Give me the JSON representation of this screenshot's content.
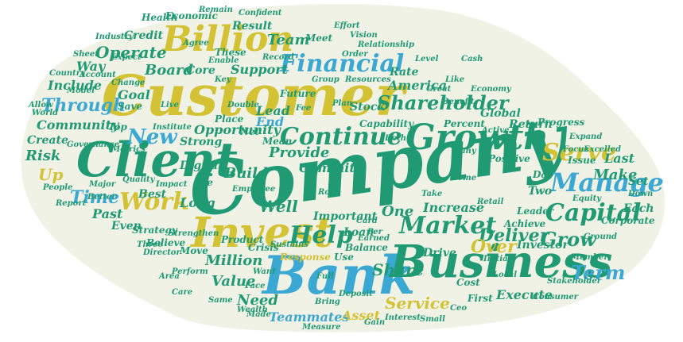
{
  "palette": {
    "background": "#ffffff",
    "cloud_fill": "#f1f2e6",
    "teal": "#1f9a73",
    "yellow": "#d3c234",
    "blue": "#3ba7d3",
    "light": "#b9c48f"
  },
  "words": {
    "company": "Company",
    "customer": "Customer",
    "bank": "Bank",
    "business": "Business",
    "client": "Client",
    "growth": "Growth",
    "billion": "Billion",
    "invest": "Invest",
    "financial": "Financial",
    "continue": "Continue",
    "manage": "Manage",
    "capital": "Capital",
    "serve": "Serve",
    "shareholder": "Shareholder",
    "market": "Market",
    "help": "Help",
    "work": "Work",
    "new": "New",
    "time": "Time",
    "deliver": "Deliver",
    "grow": "Grow",
    "over": "Over",
    "share": "Share",
    "service": "Service",
    "execute": "Execute",
    "term": "Term",
    "value": "Value",
    "million": "Million",
    "need": "Need",
    "teammates": "Teammates",
    "asset": "Asset",
    "operate": "Operate",
    "team": "Team",
    "board": "Board",
    "core": "Core",
    "support": "Support",
    "goal": "Goal",
    "through": "Through",
    "community": "Community",
    "include": "Include",
    "risk": "Risk",
    "up": "Up",
    "create": "Create",
    "way": "Way",
    "credit": "Credit",
    "result": "Result",
    "lead": "Lead",
    "end": "End",
    "america": "America",
    "rate": "Rate",
    "stock": "Stock",
    "capability": "Capability",
    "percent": "Percent",
    "global": "Global",
    "return": "Return",
    "progress": "Progress",
    "make": "Make",
    "last": "Last",
    "set": "Set",
    "each": "Each",
    "issue": "Issue",
    "day": "Day",
    "corporate": "Corporate",
    "investor": "Investor",
    "leader": "Leader",
    "two": "Two",
    "increase": "Increase",
    "one": "One",
    "important": "Important",
    "loan": "Loan",
    "well": "Well",
    "provide": "Provide",
    "commit": "Commit",
    "opportunity": "Opportunity",
    "place": "Place",
    "strong": "Strong",
    "build": "Build",
    "long": "Long",
    "digital": "Digital",
    "best": "Best",
    "past": "Past",
    "even": "Even",
    "strategy": "Strategy",
    "response": "Response",
    "balance": "Balance",
    "drive": "Drive",
    "first": "First",
    "positive": "Positive",
    "focus": "Focus",
    "excelled": "Excelled",
    "meet": "Meet",
    "economic": "Economic",
    "health": "Health",
    "save": "Save",
    "top": "Top",
    "net": "Net",
    "mean": "Mean",
    "future": "Future",
    "see": "See",
    "product": "Product",
    "crisis": "Crisis",
    "sustains": "Sustains",
    "use": "Use",
    "earned": "Earned",
    "achieve": "Achieve",
    "move": "Move",
    "believe": "Believe",
    "ceo": "Ceo",
    "cost": "Cost",
    "consumer": "Consumer",
    "deposit": "Deposit",
    "made": "Made",
    "wealth": "Wealth",
    "these": "These",
    "relationship": "Relationship",
    "record": "Record",
    "live": "Live",
    "institute": "Institute",
    "employee": "Employee",
    "card": "Card",
    "per": "Per",
    "people": "People",
    "world": "World",
    "country": "Country",
    "allow": "Allow",
    "sheet": "Sheet",
    "industry": "Industry",
    "report": "Report",
    "quality": "Quality",
    "vision": "Vision",
    "effort": "Effort",
    "great": "Great",
    "both": "Both",
    "home": "Home",
    "many": "Many",
    "active": "Active",
    "stakeholder": "Stakeholder",
    "want": "Want",
    "same": "Same",
    "bring": "Bring",
    "interest": "Interest",
    "small": "Small",
    "member": "Member",
    "down": "Down",
    "impact": "Impact",
    "perform": "Perform",
    "initial": "Initial",
    "director": "Director",
    "care": "Care",
    "face": "Face",
    "better": "Better",
    "metrics": "Metrics",
    "three": "Three",
    "enable": "Enable",
    "take": "Take",
    "role": "Role",
    "major": "Major",
    "gain": "Gain",
    "measure": "Measure",
    "agree": "Agree",
    "cash": "Cash",
    "like": "Like",
    "expect": "Expect",
    "change": "Change",
    "fee": "Fee",
    "group": "Group",
    "resources": "Resources",
    "level": "Level",
    "area": "Area",
    "local": "Local",
    "benefit": "Benefit",
    "plan": "Plan",
    "strengthen": "Strengthen",
    "governance": "Governance",
    "ground": "Ground",
    "expand": "Expand",
    "economy": "Economy",
    "confident": "Confident",
    "remain": "Remain",
    "retail": "Retail",
    "equity": "Equity",
    "double": "Double",
    "account": "Account",
    "model": "Model",
    "key": "Key",
    "order": "Order",
    "full": "Full"
  }
}
